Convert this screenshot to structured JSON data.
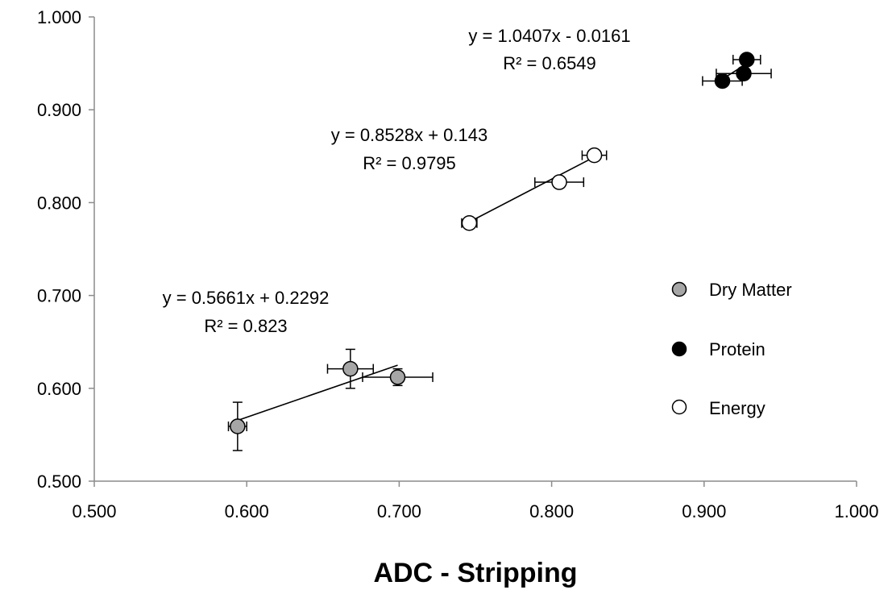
{
  "chart_data": {
    "type": "scatter",
    "xlabel": "ADC - Stripping",
    "ylabel": "",
    "xlim": [
      0.5,
      1.0
    ],
    "ylim": [
      0.5,
      1.0
    ],
    "x_ticks": [
      "0.500",
      "0.600",
      "0.700",
      "0.800",
      "0.900",
      "1.000"
    ],
    "y_ticks": [
      "0.500",
      "0.600",
      "0.700",
      "0.800",
      "0.900",
      "1.000"
    ],
    "grid": false,
    "legend_position": "right",
    "series": [
      {
        "name": "Dry Matter",
        "color": "#a6a6a6",
        "points": [
          {
            "x": 0.594,
            "y": 0.559,
            "xerr": 0.006,
            "yerr": 0.026
          },
          {
            "x": 0.668,
            "y": 0.621,
            "xerr": 0.015,
            "yerr": 0.021
          },
          {
            "x": 0.699,
            "y": 0.612,
            "xerr": 0.023,
            "yerr": 0.009
          }
        ],
        "trendline": {
          "x": [
            0.594,
            0.699
          ],
          "slope": 0.5661,
          "intercept": 0.2292
        },
        "equation": "y = 0.5661x + 0.2292",
        "r2": "R² = 0.823"
      },
      {
        "name": "Protein",
        "color": "#000000",
        "points": [
          {
            "x": 0.912,
            "y": 0.931,
            "xerr": 0.013,
            "yerr": 0.005
          },
          {
            "x": 0.926,
            "y": 0.939,
            "xerr": 0.018,
            "yerr": 0.004
          },
          {
            "x": 0.928,
            "y": 0.954,
            "xerr": 0.009,
            "yerr": 0.004
          }
        ],
        "trendline": {
          "x": [
            0.912,
            0.928
          ],
          "slope": 1.0407,
          "intercept": -0.0161
        },
        "equation": "y = 1.0407x - 0.0161",
        "r2": "R² = 0.6549"
      },
      {
        "name": "Energy",
        "color": "#ffffff",
        "points": [
          {
            "x": 0.746,
            "y": 0.778,
            "xerr": 0.005,
            "yerr": 0.004
          },
          {
            "x": 0.805,
            "y": 0.822,
            "xerr": 0.016,
            "yerr": 0.004
          },
          {
            "x": 0.828,
            "y": 0.851,
            "xerr": 0.008,
            "yerr": 0.003
          }
        ],
        "trendline": {
          "x": [
            0.746,
            0.828
          ],
          "slope": 0.8528,
          "intercept": 0.143
        },
        "equation": "y = 0.8528x + 0.143",
        "r2": "R² = 0.9795"
      }
    ],
    "legend": [
      "Dry Matter",
      "Protein",
      "Energy"
    ]
  }
}
